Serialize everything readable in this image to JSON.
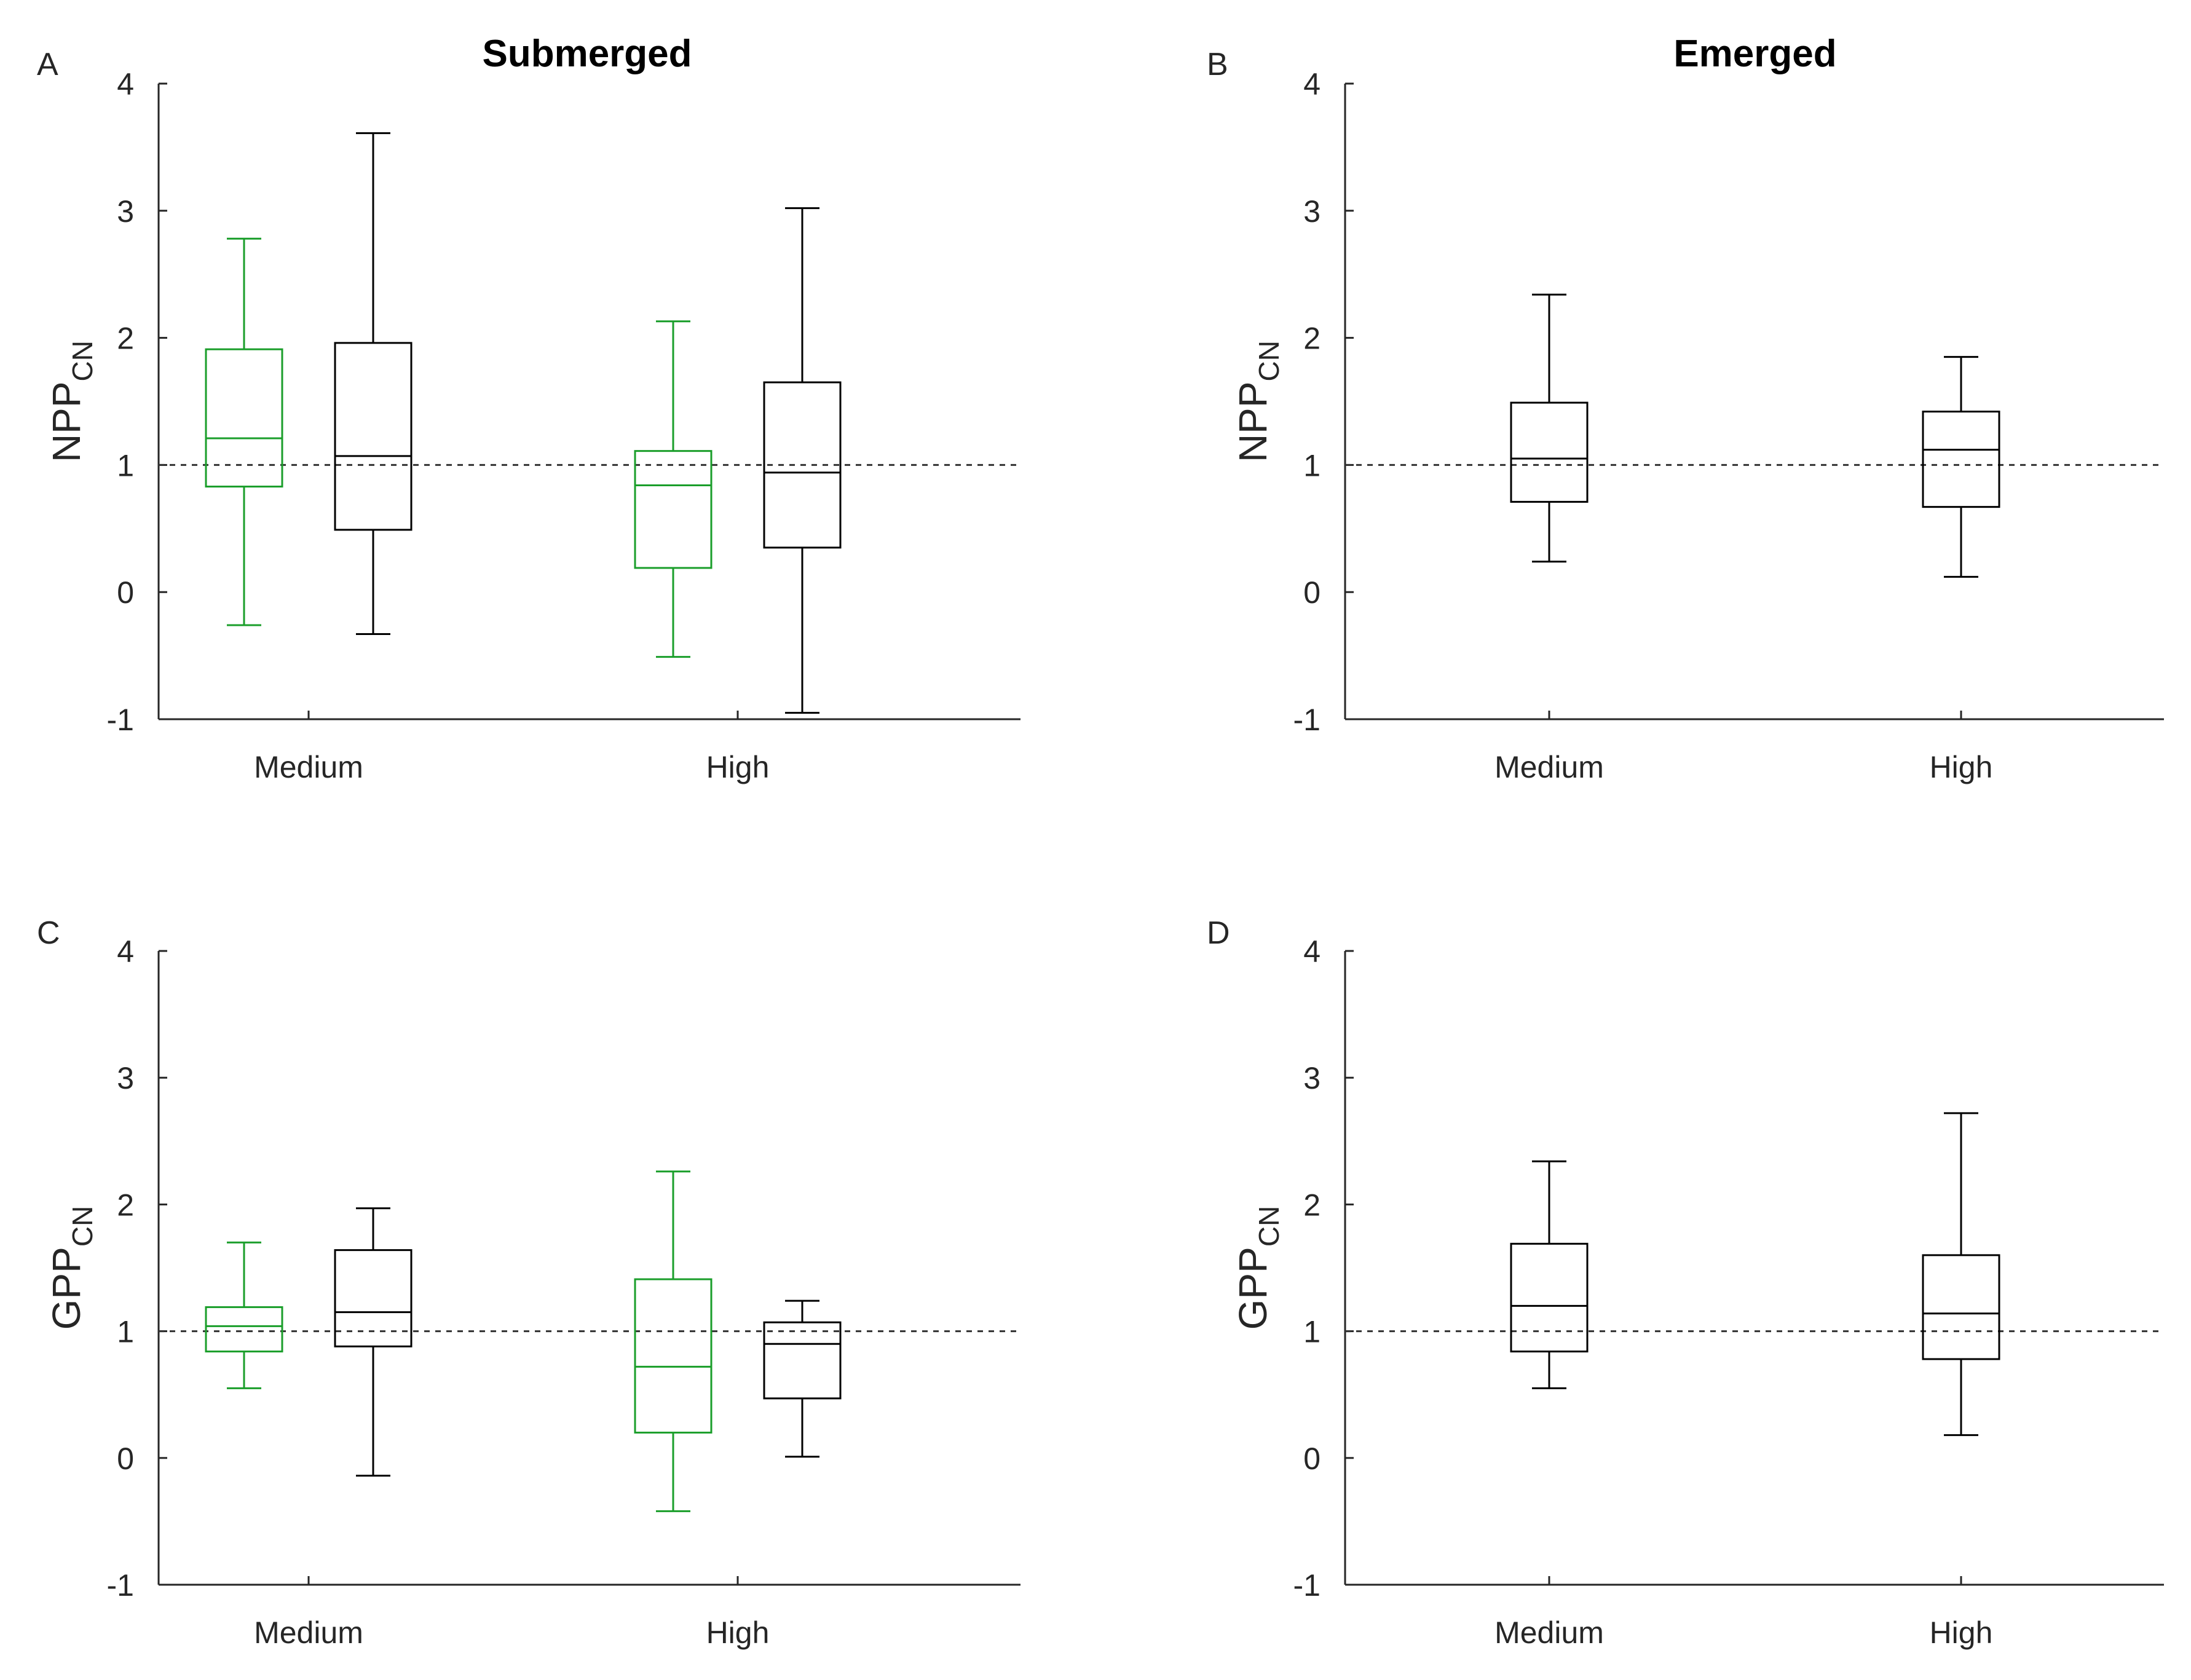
{
  "chart_data": [
    {
      "type": "boxplot",
      "panel": "A",
      "title": "Submerged",
      "ylabel": "NPP",
      "ylabel_sub": "CN",
      "categories": [
        "Medium",
        "High"
      ],
      "ylim": [
        -1,
        4
      ],
      "yticks": [
        "-1",
        "0",
        "1",
        "2",
        "3",
        "4"
      ],
      "reference_line": 1,
      "series": [
        {
          "name": "green",
          "color": "#1a9e2a",
          "boxes": [
            {
              "whisker_low": -0.26,
              "q1": 0.83,
              "median": 1.21,
              "q3": 1.91,
              "whisker_high": 2.78
            },
            {
              "whisker_low": -0.51,
              "q1": 0.19,
              "median": 0.84,
              "q3": 1.11,
              "whisker_high": 2.13
            }
          ]
        },
        {
          "name": "black",
          "color": "#000000",
          "boxes": [
            {
              "whisker_low": -0.33,
              "q1": 0.49,
              "median": 1.07,
              "q3": 1.96,
              "whisker_high": 3.61
            },
            {
              "whisker_low": -0.95,
              "q1": 0.35,
              "median": 0.94,
              "q3": 1.65,
              "whisker_high": 3.02
            }
          ]
        }
      ]
    },
    {
      "type": "boxplot",
      "panel": "B",
      "title": "Emerged",
      "ylabel": "NPP",
      "ylabel_sub": "CN",
      "categories": [
        "Medium",
        "High"
      ],
      "ylim": [
        -1,
        4
      ],
      "yticks": [
        "-1",
        "0",
        "1",
        "2",
        "3",
        "4"
      ],
      "reference_line": 1,
      "series": [
        {
          "name": "black",
          "color": "#000000",
          "boxes": [
            {
              "whisker_low": 0.24,
              "q1": 0.71,
              "median": 1.05,
              "q3": 1.49,
              "whisker_high": 2.34
            },
            {
              "whisker_low": 0.12,
              "q1": 0.67,
              "median": 1.12,
              "q3": 1.42,
              "whisker_high": 1.85
            }
          ]
        }
      ]
    },
    {
      "type": "boxplot",
      "panel": "C",
      "title": "",
      "ylabel": "GPP",
      "ylabel_sub": "CN",
      "categories": [
        "Medium",
        "High"
      ],
      "ylim": [
        -1,
        4
      ],
      "yticks": [
        "-1",
        "0",
        "1",
        "2",
        "3",
        "4"
      ],
      "reference_line": 1,
      "series": [
        {
          "name": "green",
          "color": "#1a9e2a",
          "boxes": [
            {
              "whisker_low": 0.55,
              "q1": 0.84,
              "median": 1.04,
              "q3": 1.19,
              "whisker_high": 1.7
            },
            {
              "whisker_low": -0.42,
              "q1": 0.2,
              "median": 0.72,
              "q3": 1.41,
              "whisker_high": 2.26
            }
          ]
        },
        {
          "name": "black",
          "color": "#000000",
          "boxes": [
            {
              "whisker_low": -0.14,
              "q1": 0.88,
              "median": 1.15,
              "q3": 1.64,
              "whisker_high": 1.97
            },
            {
              "whisker_low": 0.01,
              "q1": 0.47,
              "median": 0.9,
              "q3": 1.07,
              "whisker_high": 1.24
            }
          ]
        }
      ]
    },
    {
      "type": "boxplot",
      "panel": "D",
      "title": "",
      "ylabel": "GPP",
      "ylabel_sub": "CN",
      "categories": [
        "Medium",
        "High"
      ],
      "ylim": [
        -1,
        4
      ],
      "yticks": [
        "-1",
        "0",
        "1",
        "2",
        "3",
        "4"
      ],
      "reference_line": 1,
      "series": [
        {
          "name": "black",
          "color": "#000000",
          "boxes": [
            {
              "whisker_low": 0.55,
              "q1": 0.84,
              "median": 1.2,
              "q3": 1.69,
              "whisker_high": 2.34
            },
            {
              "whisker_low": 0.18,
              "q1": 0.78,
              "median": 1.14,
              "q3": 1.6,
              "whisker_high": 2.72
            }
          ]
        }
      ]
    }
  ]
}
